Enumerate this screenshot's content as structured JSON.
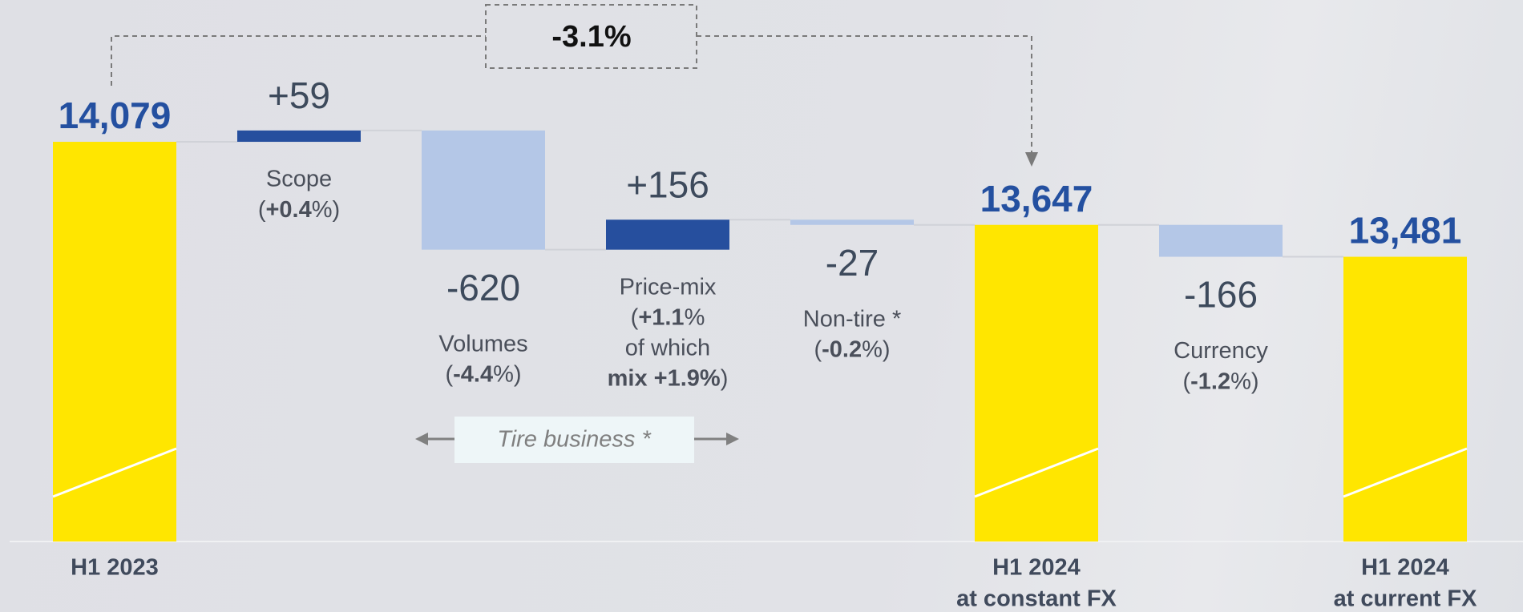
{
  "chart_data": {
    "type": "waterfall",
    "categories": [
      [
        "H1 2023"
      ],
      [
        "Scope"
      ],
      [
        "Volumes"
      ],
      [
        "Price-mix"
      ],
      [
        "Non-tire *"
      ],
      [
        "H1 2024",
        "at constant FX"
      ],
      [
        "Currency"
      ],
      [
        "H1 2024",
        "at current FX"
      ]
    ],
    "measure": [
      "total",
      "relative",
      "relative",
      "relative",
      "relative",
      "total",
      "relative",
      "total"
    ],
    "values": [
      14079,
      59,
      -620,
      156,
      -27,
      13647,
      -166,
      13481
    ],
    "value_labels": [
      "14,079",
      "+59",
      "-620",
      "+156",
      "-27",
      "13,647",
      "-166",
      "13,481"
    ],
    "notes": [
      null,
      [
        [
          {
            "text": "("
          },
          {
            "text": "+0.4",
            "bold": true
          },
          {
            "text": "%)"
          }
        ]
      ],
      [
        [
          {
            "text": "("
          },
          {
            "text": "-4.4",
            "bold": true
          },
          {
            "text": "%)"
          }
        ]
      ],
      [
        [
          {
            "text": "("
          },
          {
            "text": "+1.1",
            "bold": true
          },
          {
            "text": "%"
          }
        ],
        [
          {
            "text": "of which"
          }
        ],
        [
          {
            "text": "mix +1.9%",
            "bold": true
          },
          {
            "text": ")"
          }
        ]
      ],
      [
        [
          {
            "text": "("
          },
          {
            "text": "-0.2",
            "bold": true
          },
          {
            "text": "%)"
          }
        ]
      ],
      null,
      [
        [
          {
            "text": "("
          },
          {
            "text": "-1.2",
            "bold": true
          },
          {
            "text": "%)"
          }
        ]
      ],
      null
    ],
    "colors": {
      "total": "#ffe600",
      "increase": "#264f9e",
      "decrease": "#b4c7e7"
    },
    "ylim": [
      12000,
      14300
    ],
    "annotation": "-3.1%",
    "group_label": "Tire business *"
  }
}
